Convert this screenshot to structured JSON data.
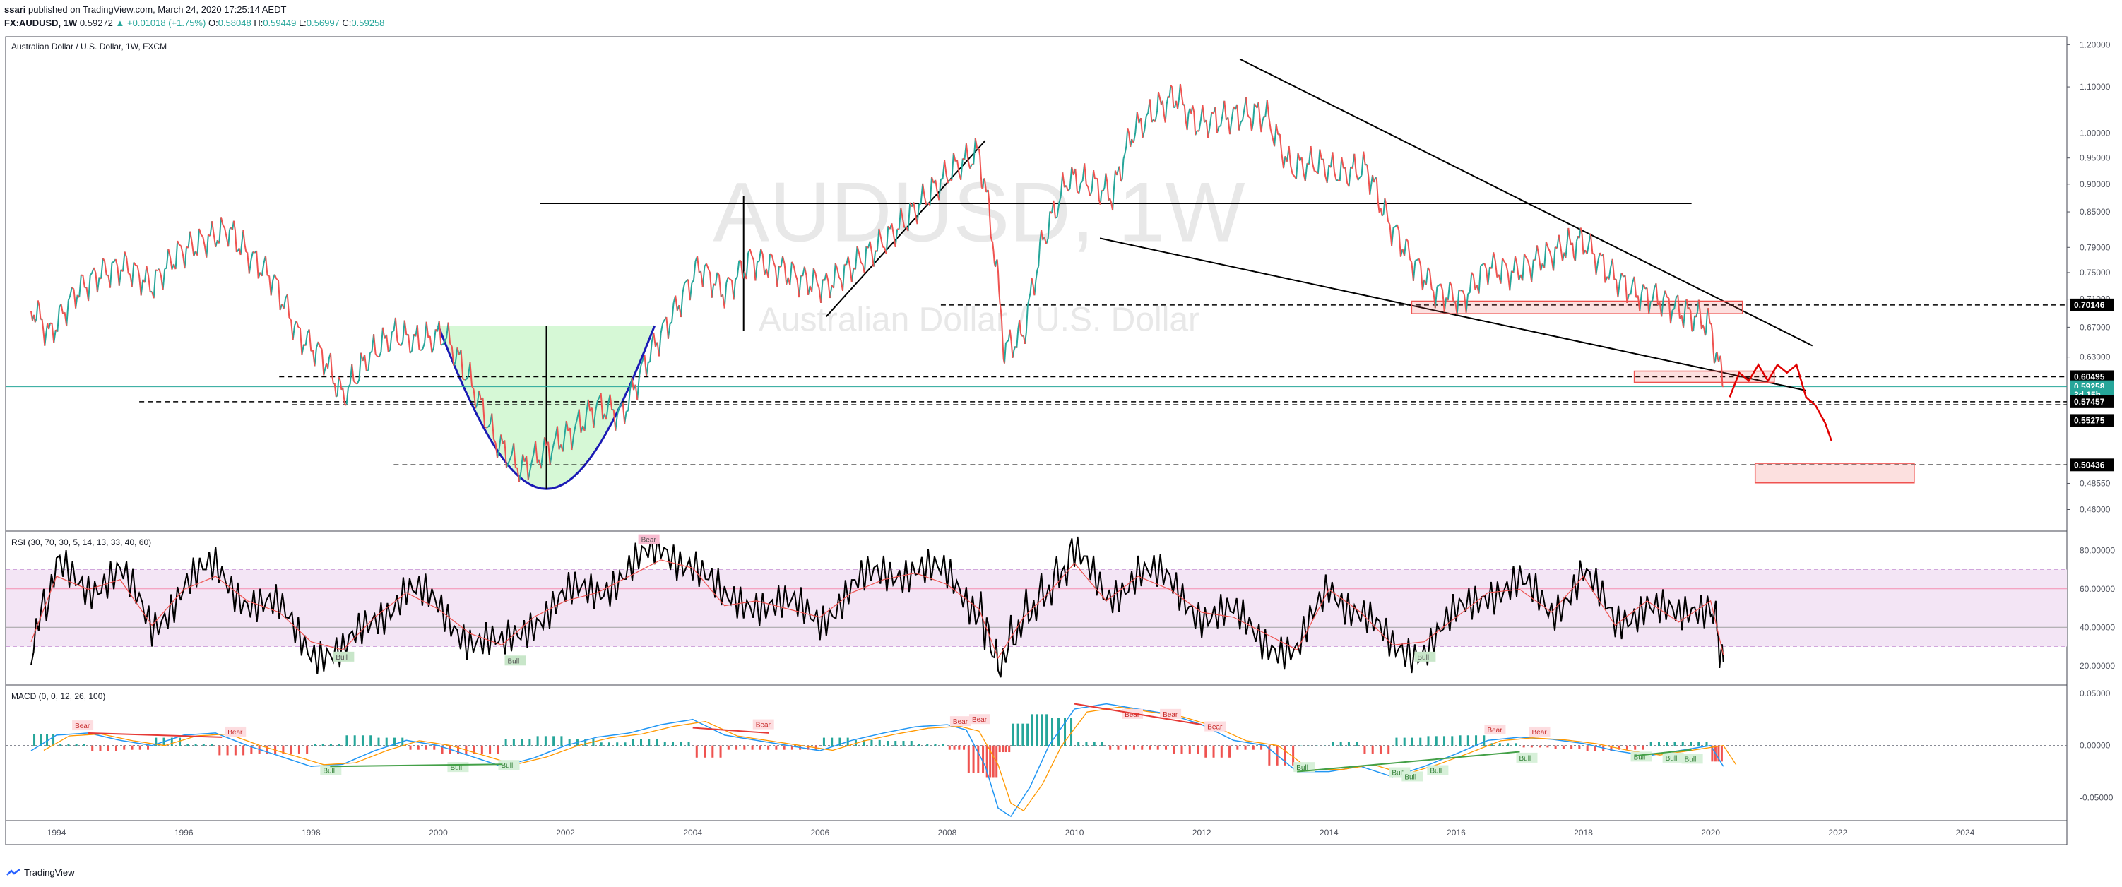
{
  "header": {
    "line1_author": "ssari",
    "line1_rest": " published on TradingView.com, March 24, 2020 17:25:14 AEDT",
    "symbol": "FX:AUDUSD, 1W",
    "last": "0.59272",
    "change": "▲ +0.01018 (+1.75%)",
    "o_label": "O:",
    "o": "0.58048",
    "h_label": "H:",
    "h": "0.59449",
    "l_label": "L:",
    "l": "0.56997",
    "c_label": "C:",
    "c": "0.59258"
  },
  "watermark": {
    "ticker": "AUDUSD, 1W",
    "name": "Australian Dollar / U.S. Dollar"
  },
  "footer": {
    "brand": "TradingView"
  },
  "colors": {
    "up": "#26a69a",
    "down": "#ef5350",
    "rsi_fill": "#f3e5f5",
    "rsi_band": "#d1a6dc",
    "cup_fill": "#c8f5c8",
    "zone": "#ef5350",
    "black": "#000000",
    "teal": "#26a69a"
  },
  "chart_data": [
    {
      "type": "line",
      "title": "Australian Dollar / U.S. Dollar, 1W, FXCM",
      "x_ticks": [
        "1994",
        "1996",
        "1998",
        "2000",
        "2002",
        "2004",
        "2006",
        "2008",
        "2010",
        "2012",
        "2014",
        "2016",
        "2018",
        "2020",
        "2022",
        "2024"
      ],
      "xlim": [
        1993.2,
        2025.6
      ],
      "y_ticks": [
        "1.20000",
        "1.10000",
        "1.00000",
        "0.95000",
        "0.90000",
        "0.85000",
        "0.79000",
        "0.75000",
        "0.71000",
        "0.67000",
        "0.63000",
        "0.48550",
        "0.46000"
      ],
      "y_scale": "log",
      "ylim": [
        0.44,
        1.22
      ],
      "series": [
        {
          "x": [
            1993.6,
            1993.9,
            1994.3,
            1994.7,
            1995.1,
            1995.5,
            1995.9,
            1996.3,
            1996.7,
            1997.0,
            1997.4,
            1997.8,
            1998.2,
            1998.5,
            1998.9,
            1999.3,
            1999.7,
            2000.1,
            2000.5,
            2000.9,
            2001.3,
            2001.7,
            2002.1,
            2002.5,
            2002.9,
            2003.3,
            2003.7,
            2004.1,
            2004.5,
            2004.9,
            2005.3,
            2005.7,
            2006.1,
            2006.5,
            2006.9,
            2007.3,
            2007.7,
            2008.1,
            2008.5,
            2008.7,
            2008.9,
            2009.2,
            2009.5,
            2009.9,
            2010.3,
            2010.6,
            2010.9,
            2011.3,
            2011.6,
            2011.9,
            2012.3,
            2012.7,
            2013.0,
            2013.4,
            2013.8,
            2014.2,
            2014.6,
            2014.9,
            2015.3,
            2015.7,
            2016.1,
            2016.5,
            2016.9,
            2017.3,
            2017.7,
            2018.0,
            2018.4,
            2018.8,
            2019.2,
            2019.6,
            2019.9,
            2020.0,
            2020.2
          ],
          "values": [
            0.7,
            0.66,
            0.72,
            0.75,
            0.76,
            0.73,
            0.78,
            0.8,
            0.82,
            0.78,
            0.74,
            0.66,
            0.63,
            0.58,
            0.63,
            0.66,
            0.65,
            0.66,
            0.6,
            0.53,
            0.5,
            0.52,
            0.54,
            0.57,
            0.56,
            0.63,
            0.69,
            0.76,
            0.72,
            0.77,
            0.76,
            0.74,
            0.73,
            0.76,
            0.79,
            0.83,
            0.88,
            0.93,
            0.96,
            0.82,
            0.64,
            0.66,
            0.8,
            0.91,
            0.9,
            0.88,
            1.0,
            1.05,
            1.08,
            1.02,
            1.03,
            1.04,
            1.04,
            0.93,
            0.94,
            0.92,
            0.93,
            0.84,
            0.77,
            0.72,
            0.71,
            0.76,
            0.75,
            0.77,
            0.79,
            0.8,
            0.75,
            0.72,
            0.71,
            0.69,
            0.68,
            0.67,
            0.59258
          ]
        },
        {
          "name": "projection",
          "x": [
            2020.3,
            2020.45,
            2020.6,
            2020.75,
            2020.9,
            2021.05,
            2021.2,
            2021.35,
            2021.5,
            2021.65,
            2021.8,
            2021.9
          ],
          "values": [
            0.58,
            0.61,
            0.6,
            0.62,
            0.6,
            0.62,
            0.61,
            0.62,
            0.58,
            0.57,
            0.55,
            0.53
          ]
        }
      ],
      "levels": [
        "0.70146",
        "0.60495",
        "0.59258",
        "0.57457",
        "0.55275",
        "0.50436"
      ],
      "price_tags": [
        "0.70146",
        "0.60495",
        "0.59258",
        "3d 15h",
        "0.57457",
        "0.55275",
        "0.50436"
      ]
    },
    {
      "type": "line",
      "title": "RSI (30, 70, 30, 5, 14, 13, 33, 40, 60)",
      "y_ticks": [
        "80.00000",
        "60.00000",
        "40.00000",
        "20.00000"
      ],
      "ylim": [
        10,
        90
      ],
      "bands": [
        30,
        40,
        60,
        70
      ],
      "series": [
        {
          "x": [
            1993.6,
            1994.0,
            1994.5,
            1995.0,
            1995.5,
            1996.0,
            1996.5,
            1997.0,
            1997.5,
            1998.0,
            1998.5,
            1999.0,
            1999.5,
            2000.0,
            2000.5,
            2001.0,
            2001.5,
            2002.0,
            2002.5,
            2003.0,
            2003.5,
            2004.0,
            2004.5,
            2005.0,
            2005.5,
            2006.0,
            2006.5,
            2007.0,
            2007.5,
            2008.0,
            2008.5,
            2008.8,
            2009.2,
            2009.6,
            2010.0,
            2010.5,
            2011.0,
            2011.5,
            2012.0,
            2012.5,
            2013.0,
            2013.5,
            2014.0,
            2014.5,
            2015.0,
            2015.5,
            2016.0,
            2016.5,
            2017.0,
            2017.5,
            2018.0,
            2018.5,
            2019.0,
            2019.5,
            2020.0,
            2020.2
          ],
          "values": [
            30,
            70,
            62,
            68,
            40,
            62,
            70,
            55,
            48,
            30,
            25,
            45,
            60,
            50,
            35,
            28,
            45,
            55,
            60,
            70,
            80,
            75,
            52,
            55,
            50,
            45,
            60,
            68,
            72,
            65,
            50,
            20,
            45,
            60,
            78,
            55,
            70,
            62,
            48,
            45,
            35,
            25,
            62,
            48,
            28,
            30,
            45,
            60,
            62,
            48,
            70,
            40,
            55,
            42,
            55,
            22
          ]
        }
      ],
      "labels": [
        "Bear",
        "Bull",
        "Bull",
        "Bull"
      ]
    },
    {
      "type": "bar",
      "title": "MACD (0, 0, 12, 26, 100)",
      "y_ticks": [
        "0.05000",
        "0.00000",
        "-0.05000"
      ],
      "ylim": [
        -0.072,
        0.058
      ],
      "series": [
        {
          "name": "MACD",
          "x": [
            1993.6,
            1994.0,
            1994.5,
            1995.0,
            1995.5,
            1996.0,
            1996.5,
            1997.0,
            1997.5,
            1998.0,
            1998.5,
            1999.0,
            1999.5,
            2000.0,
            2000.5,
            2001.0,
            2001.5,
            2002.0,
            2002.5,
            2003.0,
            2003.5,
            2004.0,
            2004.5,
            2005.0,
            2005.5,
            2006.0,
            2006.5,
            2007.0,
            2007.5,
            2008.0,
            2008.3,
            2008.6,
            2008.8,
            2009.0,
            2009.3,
            2009.6,
            2010.0,
            2010.5,
            2011.0,
            2011.5,
            2012.0,
            2012.5,
            2013.0,
            2013.5,
            2014.0,
            2014.5,
            2015.0,
            2015.5,
            2016.0,
            2016.5,
            2017.0,
            2017.5,
            2018.0,
            2018.5,
            2019.0,
            2019.5,
            2020.0,
            2020.2
          ],
          "values": [
            -0.005,
            0.01,
            0.012,
            0.005,
            0.0,
            0.01,
            0.012,
            0.0,
            -0.01,
            -0.02,
            -0.018,
            -0.005,
            0.005,
            0.0,
            -0.01,
            -0.02,
            -0.012,
            0.0,
            0.008,
            0.012,
            0.02,
            0.025,
            0.01,
            0.005,
            0.0,
            -0.005,
            0.005,
            0.012,
            0.018,
            0.02,
            0.015,
            -0.02,
            -0.06,
            -0.068,
            -0.04,
            0.0,
            0.035,
            0.04,
            0.035,
            0.03,
            0.02,
            0.005,
            0.0,
            -0.025,
            -0.025,
            -0.02,
            -0.03,
            -0.02,
            -0.008,
            0.005,
            0.008,
            0.006,
            0.002,
            -0.005,
            -0.01,
            -0.005,
            0.0,
            -0.02
          ]
        }
      ],
      "labels": [
        "Bear",
        "Bear",
        "Bull",
        "Bull",
        "Bull",
        "Bear",
        "Bear",
        "Bear",
        "Bear",
        "Bear",
        "Bear",
        "Bull",
        "Bull",
        "Bull",
        "Bull",
        "Bull",
        "Bear",
        "Bear",
        "Bull",
        "Bull",
        "Bull"
      ]
    }
  ]
}
